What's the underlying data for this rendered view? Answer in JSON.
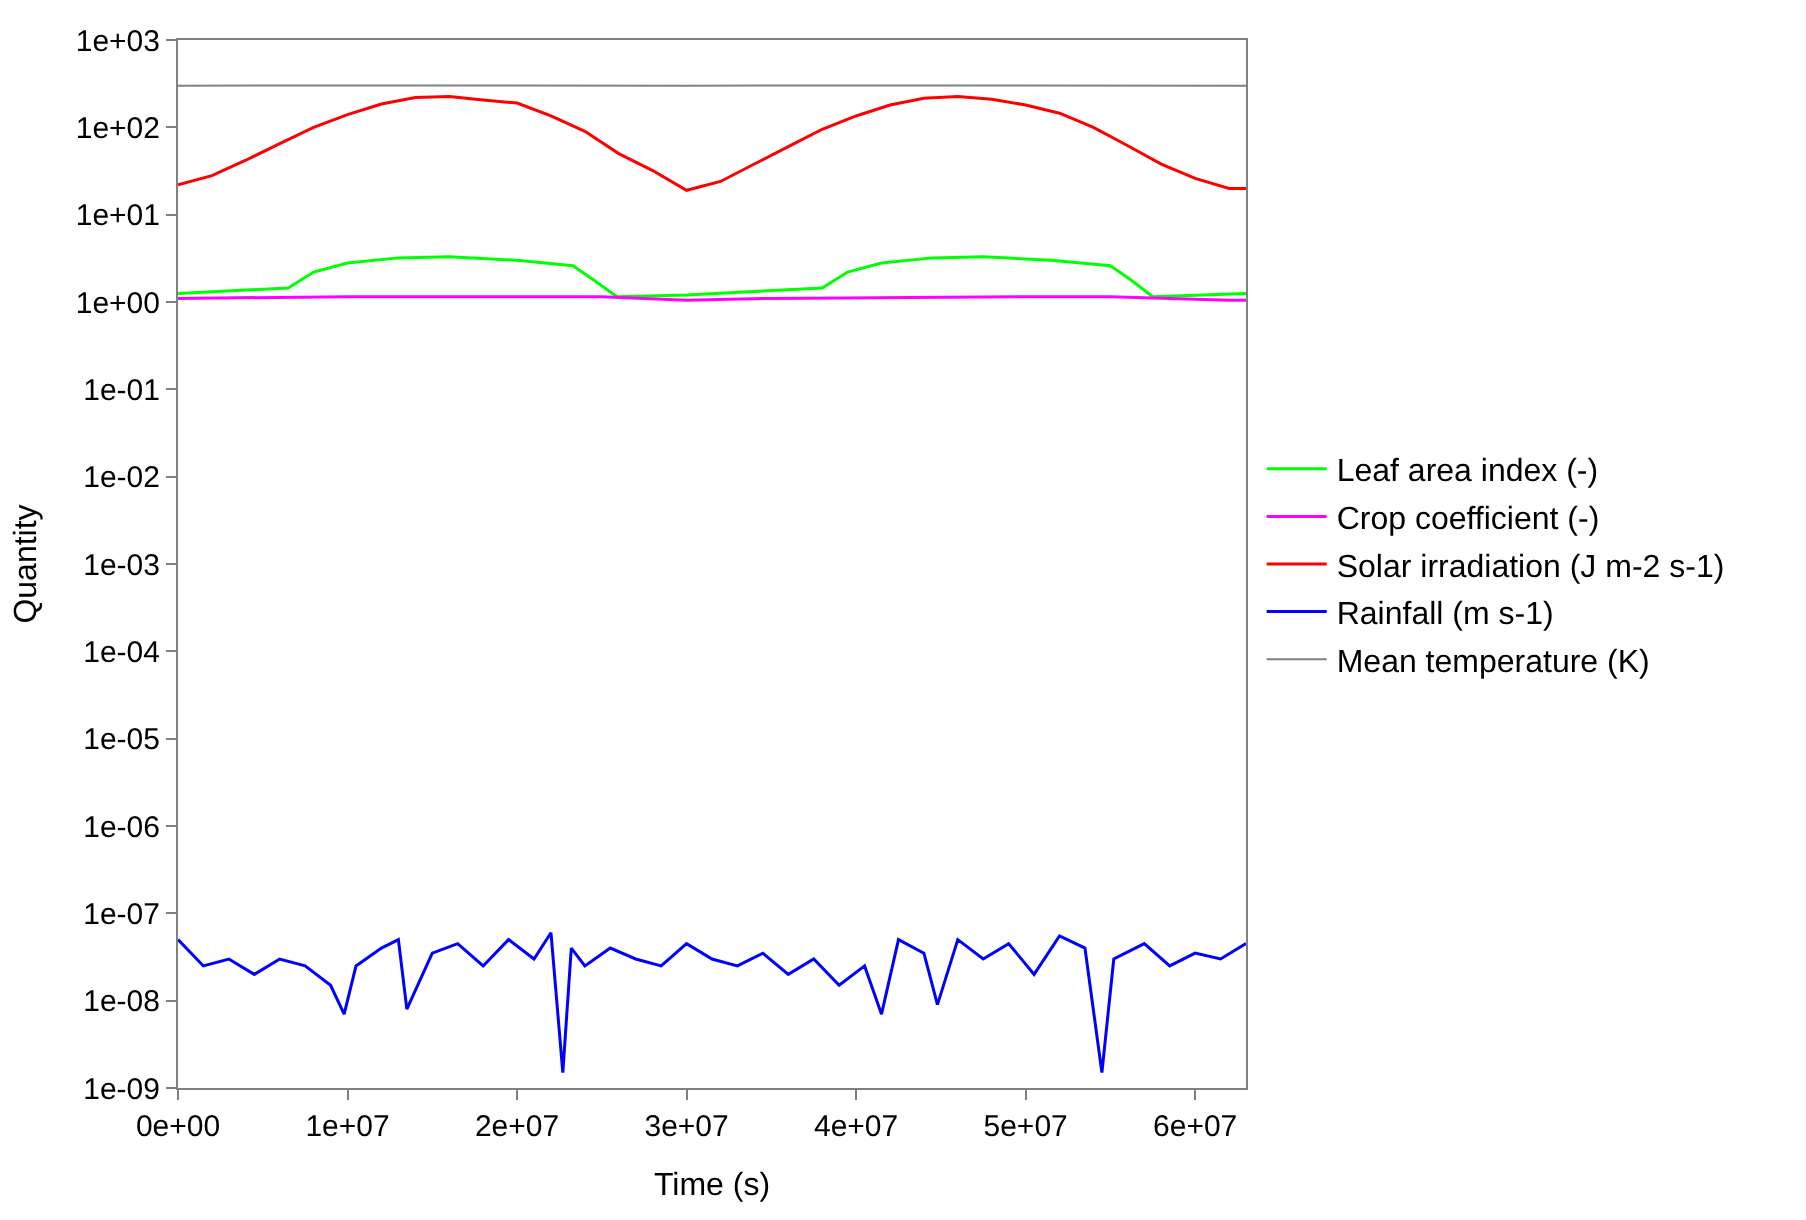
{
  "chart_data": {
    "type": "line",
    "xlabel": "Time (s)",
    "ylabel": "Quantity",
    "log": "y",
    "legend": "right",
    "marker": "none",
    "line_style": "solid",
    "xlim": [
      0,
      63000000
    ],
    "xticks": [
      {
        "value": 0,
        "label": "0e+00"
      },
      {
        "value": 10000000,
        "label": "1e+07"
      },
      {
        "value": 20000000,
        "label": "2e+07"
      },
      {
        "value": 30000000,
        "label": "3e+07"
      },
      {
        "value": 40000000,
        "label": "4e+07"
      },
      {
        "value": 50000000,
        "label": "5e+07"
      },
      {
        "value": 60000000,
        "label": "6e+07"
      }
    ],
    "ylim": [
      1e-09,
      1000
    ],
    "yticks": [
      {
        "value": 1e-09,
        "label": "1e-09"
      },
      {
        "value": 1e-08,
        "label": "1e-08"
      },
      {
        "value": 1e-07,
        "label": "1e-07"
      },
      {
        "value": 1e-06,
        "label": "1e-06"
      },
      {
        "value": 1e-05,
        "label": "1e-05"
      },
      {
        "value": 0.0001,
        "label": "1e-04"
      },
      {
        "value": 0.001,
        "label": "1e-03"
      },
      {
        "value": 0.01,
        "label": "1e-02"
      },
      {
        "value": 0.1,
        "label": "1e-01"
      },
      {
        "value": 1,
        "label": "1e+00"
      },
      {
        "value": 10,
        "label": "1e+01"
      },
      {
        "value": 100,
        "label": "1e+02"
      },
      {
        "value": 1000,
        "label": "1e+03"
      }
    ],
    "series": [
      {
        "name": "Leaf area index (-)",
        "color": "#00ff00",
        "x": [
          0,
          6500000,
          8000000,
          10000000,
          13000000,
          16000000,
          20000000,
          23300000,
          24500000,
          25900000,
          30000000,
          38000000,
          39500000,
          41500000,
          44500000,
          47500000,
          51500000,
          55000000,
          56200000,
          57500000,
          63000000
        ],
        "values": [
          1.25,
          1.45,
          2.2,
          2.8,
          3.2,
          3.3,
          3.0,
          2.6,
          1.8,
          1.15,
          1.2,
          1.45,
          2.2,
          2.8,
          3.2,
          3.3,
          3.0,
          2.6,
          1.8,
          1.15,
          1.25
        ]
      },
      {
        "name": "Crop coefficient (-)",
        "color": "#ff00ff",
        "x": [
          0,
          10000000,
          25000000,
          30000000,
          35000000,
          50000000,
          55000000,
          62000000,
          63000000
        ],
        "values": [
          1.1,
          1.15,
          1.15,
          1.05,
          1.1,
          1.15,
          1.15,
          1.05,
          1.05
        ]
      },
      {
        "name": "Solar irradiation (J m-2 s-1)",
        "color": "#ff0000",
        "x": [
          0,
          2000000,
          4000000,
          6000000,
          8000000,
          10000000,
          12000000,
          14000000,
          16000000,
          18000000,
          20000000,
          22000000,
          24000000,
          26000000,
          28000000,
          30000000,
          32000000,
          34000000,
          36000000,
          38000000,
          40000000,
          42000000,
          44000000,
          46000000,
          48000000,
          50000000,
          52000000,
          54000000,
          56000000,
          58000000,
          60000000,
          62000000,
          63000000
        ],
        "values": [
          22,
          28,
          42,
          65,
          100,
          140,
          185,
          220,
          225,
          205,
          190,
          135,
          90,
          50,
          32,
          19,
          24,
          38,
          60,
          95,
          135,
          180,
          215,
          225,
          210,
          180,
          145,
          100,
          62,
          38,
          26,
          20,
          20
        ]
      },
      {
        "name": "Rainfall (m s-1)",
        "color": "#0000ff",
        "x": [
          0,
          1500000,
          3000000,
          4500000,
          6000000,
          7500000,
          9000000,
          9800000,
          10500000,
          12000000,
          13000000,
          13500000,
          15000000,
          16500000,
          18000000,
          19500000,
          21000000,
          22000000,
          22700000,
          23200000,
          24000000,
          25500000,
          27000000,
          28500000,
          30000000,
          31500000,
          33000000,
          34500000,
          36000000,
          37500000,
          39000000,
          40500000,
          41500000,
          42500000,
          44000000,
          44800000,
          46000000,
          47500000,
          49000000,
          50500000,
          52000000,
          53500000,
          54500000,
          55200000,
          57000000,
          58500000,
          60000000,
          61500000,
          63000000
        ],
        "values": [
          5e-08,
          2.5e-08,
          3e-08,
          2e-08,
          3e-08,
          2.5e-08,
          1.5e-08,
          7e-09,
          2.5e-08,
          4e-08,
          5e-08,
          8e-09,
          3.5e-08,
          4.5e-08,
          2.5e-08,
          5e-08,
          3e-08,
          6e-08,
          1.5e-09,
          4e-08,
          2.5e-08,
          4e-08,
          3e-08,
          2.5e-08,
          4.5e-08,
          3e-08,
          2.5e-08,
          3.5e-08,
          2e-08,
          3e-08,
          1.5e-08,
          2.5e-08,
          7e-09,
          5e-08,
          3.5e-08,
          9e-09,
          5e-08,
          3e-08,
          4.5e-08,
          2e-08,
          5.5e-08,
          4e-08,
          1.5e-09,
          3e-08,
          4.5e-08,
          2.5e-08,
          3.5e-08,
          3e-08,
          4.5e-08
        ]
      },
      {
        "name": "Mean temperature (K)",
        "color": "#808080",
        "x": [
          0,
          15000000,
          30000000,
          45000000,
          63000000
        ],
        "values": [
          300,
          302,
          300,
          302,
          300
        ]
      }
    ]
  }
}
